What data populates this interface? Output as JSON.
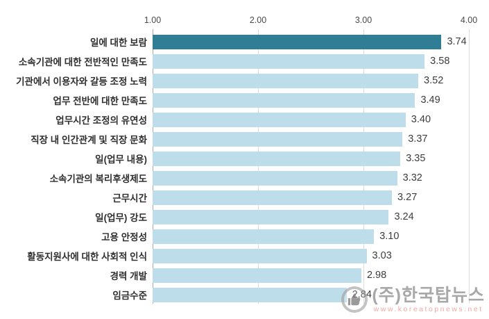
{
  "chart_data": {
    "type": "bar",
    "orientation": "horizontal",
    "title": "",
    "xlabel": "",
    "ylabel": "",
    "categories": [
      "일에 대한 보람",
      "소속기관에 대한 전반적인 만족도",
      "기관에서 이용자와 갈등 조정 노력",
      "업무 전반에 대한 만족도",
      "업무시간 조정의 유연성",
      "직장 내 인간관계 및 직장 문화",
      "일(업무 내용)",
      "소속기관의 복리후생제도",
      "근무시간",
      "일(업무) 강도",
      "고용 안정성",
      "활동지원사에 대한 사회적 인식",
      "경력 개발",
      "임금수준"
    ],
    "values": [
      3.74,
      3.58,
      3.52,
      3.49,
      3.4,
      3.37,
      3.35,
      3.32,
      3.27,
      3.24,
      3.1,
      3.03,
      2.98,
      2.84
    ],
    "value_labels": [
      "3.74",
      "3.58",
      "3.52",
      "3.49",
      "3.40",
      "3.37",
      "3.35",
      "3.32",
      "3.27",
      "3.24",
      "3.10",
      "3.03",
      "2.98",
      "2.84"
    ],
    "xlim": [
      1.0,
      4.0
    ],
    "xticks": [
      {
        "value": 1.0,
        "label": "1.00"
      },
      {
        "value": 2.0,
        "label": "2.00"
      },
      {
        "value": 3.0,
        "label": "3.00"
      },
      {
        "value": 4.0,
        "label": "4.00"
      }
    ],
    "tick_position": "top",
    "grid": "vertical",
    "legend": false,
    "highlight_index": 0,
    "colors": {
      "bar": "#bcdde9",
      "highlight_bar": "#307d96",
      "axis_line": "#a6a6a6",
      "gridline": "#dcdcdc",
      "category_text": "#2f2f2f",
      "value_text": "#3c3c3c"
    }
  },
  "watermark": {
    "company": "(주)한국탑뉴스",
    "url": "www.koreatopnews.net",
    "icon": "thumbs-up-icon"
  }
}
